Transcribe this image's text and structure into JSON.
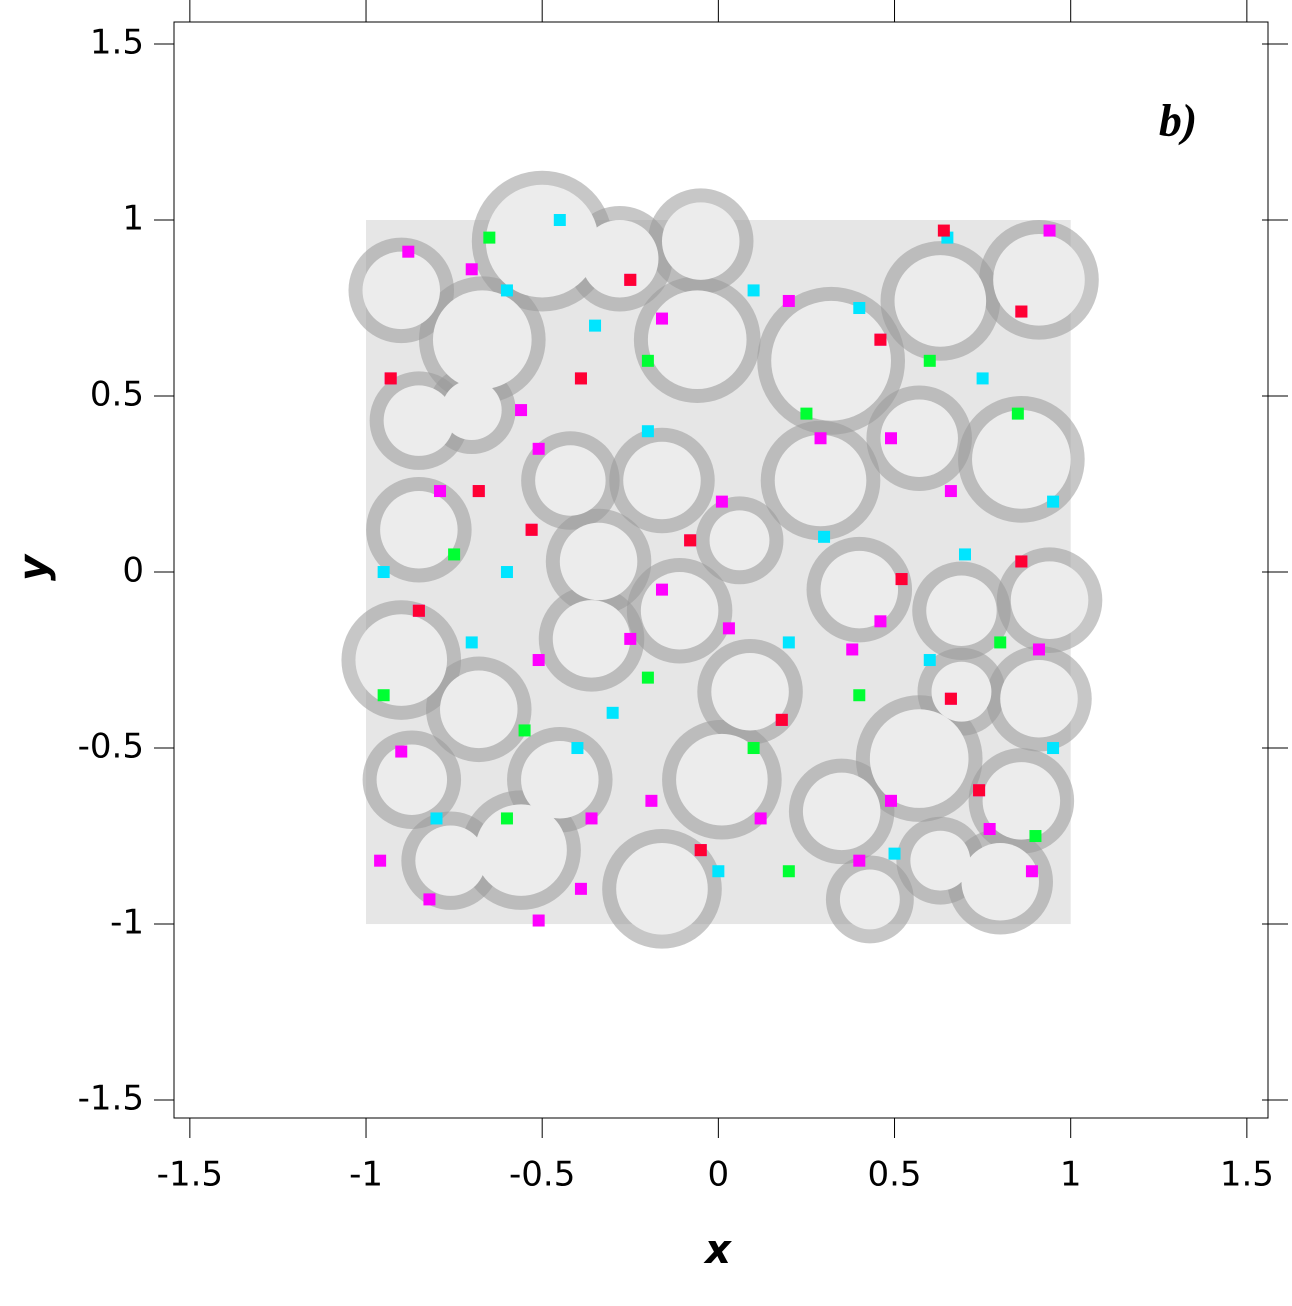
{
  "chart_data": {
    "type": "scatter",
    "annotation": "b)",
    "x_label": "x",
    "y_label": "y",
    "xlim": [
      -1.545,
      1.56
    ],
    "ylim": [
      -1.551,
      1.5625
    ],
    "xticks": [
      -1.5,
      -1,
      -0.5,
      0,
      0.5,
      1,
      1.5
    ],
    "yticks": [
      -1.5,
      -1,
      -0.5,
      0,
      0.5,
      1,
      1.5
    ],
    "region": {
      "x": [
        -1,
        1
      ],
      "y": [
        -1,
        1
      ],
      "color": "#e6e6e6"
    },
    "cells": {
      "color": "#ececec",
      "edge_color": "#999999",
      "x": [
        -0.9,
        -0.5,
        -0.67,
        -0.28,
        -0.05,
        -0.06,
        0.32,
        0.91,
        0.63,
        0.86,
        0.57,
        0.29,
        -0.16,
        -0.42,
        -0.85,
        -0.7,
        -0.85,
        -0.34,
        0.06,
        0.4,
        0.94,
        0.69,
        -0.11,
        -0.36,
        -0.9,
        -0.68,
        0.09,
        0.91,
        0.57,
        0.35,
        0.01,
        -0.45,
        -0.87,
        -0.56,
        -0.16,
        0.86,
        0.8,
        0.63,
        -0.76,
        0.43,
        0.69
      ],
      "y": [
        0.8,
        0.94,
        0.66,
        0.89,
        0.94,
        0.66,
        0.6,
        0.83,
        0.77,
        0.32,
        0.38,
        0.26,
        0.26,
        0.26,
        0.43,
        0.46,
        0.12,
        0.03,
        0.09,
        -0.05,
        -0.08,
        -0.11,
        -0.11,
        -0.19,
        -0.25,
        -0.39,
        -0.34,
        -0.36,
        -0.53,
        -0.68,
        -0.59,
        -0.59,
        -0.59,
        -0.79,
        -0.9,
        -0.65,
        -0.88,
        -0.82,
        -0.82,
        -0.93,
        -0.34
      ],
      "sizes": [
        0.11,
        0.16,
        0.14,
        0.11,
        0.11,
        0.14,
        0.17,
        0.13,
        0.13,
        0.14,
        0.11,
        0.13,
        0.11,
        0.1,
        0.1,
        0.085,
        0.11,
        0.11,
        0.085,
        0.11,
        0.11,
        0.1,
        0.11,
        0.11,
        0.13,
        0.11,
        0.11,
        0.11,
        0.14,
        0.11,
        0.13,
        0.11,
        0.1,
        0.13,
        0.13,
        0.11,
        0.11,
        0.085,
        0.1,
        0.085,
        0.085
      ]
    },
    "series": [
      {
        "color": "#ff00ff",
        "x": [
          -0.25,
          -0.16,
          -0.39,
          -0.56,
          -0.51,
          -0.68,
          -0.53,
          -0.08,
          0.01,
          -0.16,
          -0.25,
          -0.51,
          0.03,
          0.18,
          0.38,
          0.46,
          0.52,
          0.49,
          0.46,
          0.29,
          0.66,
          0.86,
          0.91,
          0.66,
          0.74,
          0.89,
          0.77,
          0.49,
          0.4,
          0.12,
          -0.05,
          -0.19,
          -0.36,
          -0.39,
          -0.51,
          -0.82,
          -0.96,
          -0.9,
          -0.85,
          -0.93,
          -0.88,
          0.2,
          0.86,
          0.94,
          -0.7,
          -0.79
        ],
        "y": [
          0.83,
          0.72,
          0.55,
          0.46,
          0.35,
          0.23,
          0.12,
          0.09,
          0.2,
          -0.05,
          -0.19,
          -0.25,
          -0.16,
          -0.42,
          -0.22,
          -0.14,
          -0.02,
          0.38,
          0.66,
          0.38,
          0.23,
          0.03,
          -0.22,
          -0.36,
          -0.62,
          -0.85,
          -0.73,
          -0.65,
          -0.82,
          -0.7,
          -0.79,
          -0.65,
          -0.7,
          -0.9,
          -0.99,
          -0.93,
          -0.82,
          -0.51,
          -0.11,
          0.55,
          0.91,
          0.77,
          0.74,
          0.97,
          0.86,
          0.23
        ]
      },
      {
        "color": "#ff0033",
        "x": [
          -0.25,
          -0.39,
          -0.53,
          -0.08,
          0.18,
          0.52,
          0.46,
          0.86,
          -0.93,
          -0.85,
          -0.68,
          0.66,
          0.74,
          -0.05,
          0.86,
          0.64
        ],
        "y": [
          0.83,
          0.55,
          0.12,
          0.09,
          -0.42,
          -0.02,
          0.66,
          0.74,
          0.55,
          -0.11,
          0.23,
          -0.36,
          -0.62,
          -0.79,
          0.03,
          0.97
        ]
      },
      {
        "color": "#00e5ff",
        "x": [
          -0.6,
          -0.35,
          0.1,
          0.4,
          0.75,
          0.95,
          0.7,
          0.3,
          -0.2,
          -0.6,
          -0.95,
          -0.7,
          -0.3,
          0.2,
          0.6,
          0.95,
          0.5,
          0.0,
          -0.4,
          -0.8,
          0.65,
          -0.45
        ],
        "y": [
          0.8,
          0.7,
          0.8,
          0.75,
          0.55,
          0.2,
          0.05,
          0.1,
          0.4,
          0.0,
          0.0,
          -0.2,
          -0.4,
          -0.2,
          -0.25,
          -0.5,
          -0.8,
          -0.85,
          -0.5,
          -0.7,
          0.95,
          1.0
        ]
      },
      {
        "color": "#00ff33",
        "x": [
          -0.65,
          -0.2,
          0.25,
          0.6,
          0.85,
          0.4,
          0.1,
          -0.2,
          -0.55,
          -0.95,
          -0.75,
          0.8,
          0.2,
          -0.6,
          0.9
        ],
        "y": [
          0.95,
          0.6,
          0.45,
          0.6,
          0.45,
          -0.35,
          -0.5,
          -0.3,
          -0.45,
          -0.35,
          0.05,
          -0.2,
          -0.85,
          -0.7,
          -0.75
        ]
      }
    ]
  }
}
